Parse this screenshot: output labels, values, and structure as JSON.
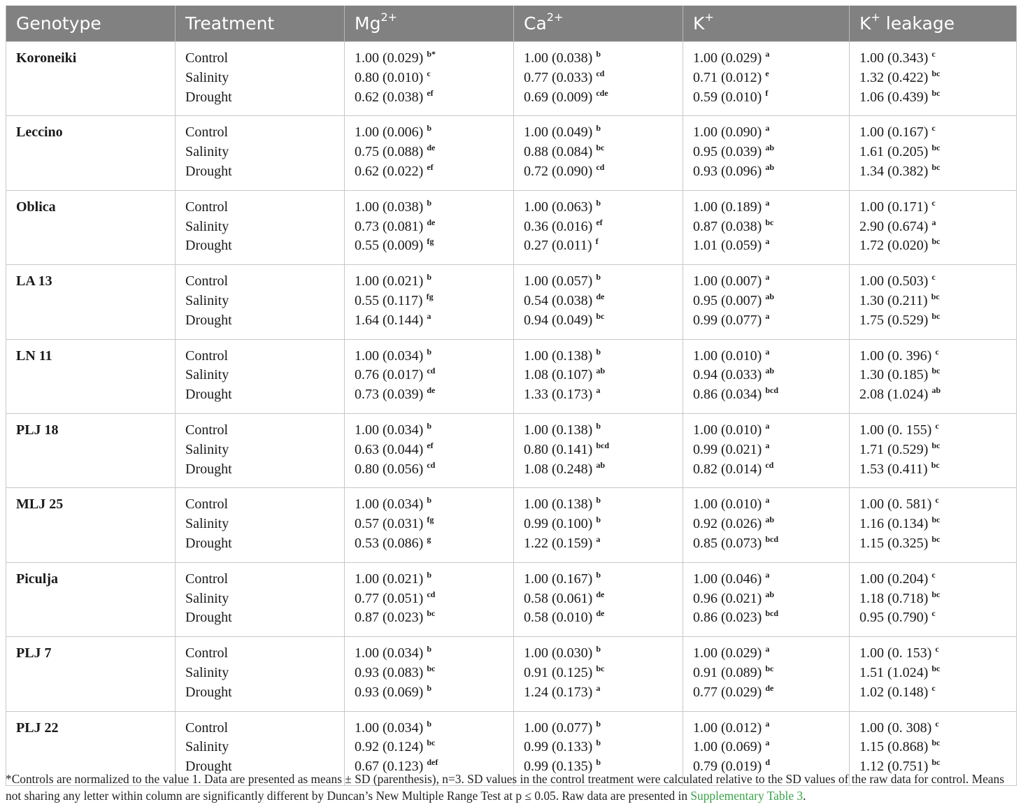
{
  "headers": {
    "genotype": "Genotype",
    "treatment": "Treatment",
    "mg": "Mg",
    "mg_sup": "2+",
    "ca": "Ca",
    "ca_sup": "2+",
    "k": "K",
    "k_sup": "+",
    "kl": "K",
    "kl_sup": "+",
    "kl_rest": " leakage"
  },
  "rows": [
    {
      "genotype": "Koroneiki",
      "treatments": [
        "Control",
        "Salinity",
        "Drought"
      ],
      "mg": [
        [
          "1.00 (0.029)",
          "b*"
        ],
        [
          "0.80 (0.010)",
          "c"
        ],
        [
          "0.62 (0.038)",
          "ef"
        ]
      ],
      "ca": [
        [
          "1.00 (0.038)",
          "b"
        ],
        [
          "0.77 (0.033)",
          "cd"
        ],
        [
          "0.69 (0.009)",
          "cde"
        ]
      ],
      "k": [
        [
          "1.00 (0.029)",
          "a"
        ],
        [
          "0.71 (0.012)",
          "e"
        ],
        [
          "0.59 (0.010)",
          "f"
        ]
      ],
      "kl": [
        [
          "1.00 (0.343)",
          "c"
        ],
        [
          "1.32 (0.422)",
          "bc"
        ],
        [
          "1.06 (0.439)",
          "bc"
        ]
      ]
    },
    {
      "genotype": "Leccino",
      "treatments": [
        "Control",
        "Salinity",
        "Drought"
      ],
      "mg": [
        [
          "1.00 (0.006)",
          "b"
        ],
        [
          "0.75 (0.088)",
          "de"
        ],
        [
          "0.62 (0.022)",
          "ef"
        ]
      ],
      "ca": [
        [
          "1.00 (0.049)",
          "b"
        ],
        [
          "0.88 (0.084)",
          "bc"
        ],
        [
          "0.72 (0.090)",
          "cd"
        ]
      ],
      "k": [
        [
          "1.00 (0.090)",
          "a"
        ],
        [
          "0.95 (0.039)",
          "ab"
        ],
        [
          "0.93 (0.096)",
          "ab"
        ]
      ],
      "kl": [
        [
          "1.00 (0.167)",
          "c"
        ],
        [
          "1.61 (0.205)",
          "bc"
        ],
        [
          "1.34 (0.382)",
          "bc"
        ]
      ]
    },
    {
      "genotype": "Oblica",
      "treatments": [
        "Control",
        "Salinity",
        "Drought"
      ],
      "mg": [
        [
          "1.00 (0.038)",
          "b"
        ],
        [
          "0.73 (0.081)",
          "de"
        ],
        [
          "0.55 (0.009)",
          "fg"
        ]
      ],
      "ca": [
        [
          "1.00 (0.063)",
          "b"
        ],
        [
          "0.36 (0.016)",
          "ef"
        ],
        [
          "0.27 (0.011)",
          "f"
        ]
      ],
      "k": [
        [
          "1.00 (0.189)",
          "a"
        ],
        [
          "0.87 (0.038)",
          "bc"
        ],
        [
          "1.01 (0.059)",
          "a"
        ]
      ],
      "kl": [
        [
          "1.00 (0.171)",
          "c"
        ],
        [
          "2.90 (0.674)",
          "a"
        ],
        [
          "1.72 (0.020)",
          "bc"
        ]
      ]
    },
    {
      "genotype": "LA 13",
      "treatments": [
        "Control",
        "Salinity",
        "Drought"
      ],
      "mg": [
        [
          "1.00 (0.021)",
          "b"
        ],
        [
          "0.55 (0.117)",
          "fg"
        ],
        [
          "1.64 (0.144)",
          "a"
        ]
      ],
      "ca": [
        [
          "1.00 (0.057)",
          "b"
        ],
        [
          "0.54 (0.038)",
          "de"
        ],
        [
          "0.94 (0.049)",
          "bc"
        ]
      ],
      "k": [
        [
          "1.00 (0.007)",
          "a"
        ],
        [
          "0.95 (0.007)",
          "ab"
        ],
        [
          "0.99 (0.077)",
          "a"
        ]
      ],
      "kl": [
        [
          "1.00 (0.503)",
          "c"
        ],
        [
          "1.30 (0.211)",
          "bc"
        ],
        [
          "1.75 (0.529)",
          "bc"
        ]
      ]
    },
    {
      "genotype": "LN 11",
      "treatments": [
        "Control",
        "Salinity",
        "Drought"
      ],
      "mg": [
        [
          "1.00 (0.034)",
          "b"
        ],
        [
          "0.76 (0.017)",
          "cd"
        ],
        [
          "0.73 (0.039)",
          "de"
        ]
      ],
      "ca": [
        [
          "1.00 (0.138)",
          "b"
        ],
        [
          "1.08 (0.107)",
          "ab"
        ],
        [
          "1.33 (0.173)",
          "a"
        ]
      ],
      "k": [
        [
          "1.00 (0.010)",
          "a"
        ],
        [
          "0.94 (0.033)",
          "ab"
        ],
        [
          "0.86 (0.034)",
          "bcd"
        ]
      ],
      "kl": [
        [
          "1.00 (0. 396)",
          "c"
        ],
        [
          "1.30 (0.185)",
          "bc"
        ],
        [
          "2.08 (1.024)",
          "ab"
        ]
      ]
    },
    {
      "genotype": "PLJ 18",
      "treatments": [
        "Control",
        "Salinity",
        "Drought"
      ],
      "mg": [
        [
          "1.00 (0.034)",
          "b"
        ],
        [
          "0.63 (0.044)",
          "ef"
        ],
        [
          "0.80 (0.056)",
          "cd"
        ]
      ],
      "ca": [
        [
          "1.00 (0.138)",
          "b"
        ],
        [
          "0.80 (0.141)",
          "bcd"
        ],
        [
          "1.08 (0.248)",
          "ab"
        ]
      ],
      "k": [
        [
          "1.00 (0.010)",
          "a"
        ],
        [
          "0.99 (0.021)",
          "a"
        ],
        [
          "0.82 (0.014)",
          "cd"
        ]
      ],
      "kl": [
        [
          "1.00 (0. 155)",
          "c"
        ],
        [
          "1.71 (0.529)",
          "bc"
        ],
        [
          "1.53 (0.411)",
          "bc"
        ]
      ]
    },
    {
      "genotype": "MLJ 25",
      "treatments": [
        "Control",
        "Salinity",
        "Drought"
      ],
      "mg": [
        [
          "1.00 (0.034)",
          "b"
        ],
        [
          "0.57 (0.031)",
          "fg"
        ],
        [
          "0.53 (0.086)",
          "g"
        ]
      ],
      "ca": [
        [
          "1.00 (0.138)",
          "b"
        ],
        [
          "0.99 (0.100)",
          "b"
        ],
        [
          "1.22 (0.159)",
          "a"
        ]
      ],
      "k": [
        [
          "1.00 (0.010)",
          "a"
        ],
        [
          "0.92 (0.026)",
          "ab"
        ],
        [
          "0.85 (0.073)",
          "bcd"
        ]
      ],
      "kl": [
        [
          "1.00 (0. 581)",
          "c"
        ],
        [
          "1.16 (0.134)",
          "bc"
        ],
        [
          "1.15 (0.325)",
          "bc"
        ]
      ]
    },
    {
      "genotype": "Piculja",
      "treatments": [
        "Control",
        "Salinity",
        "Drought"
      ],
      "mg": [
        [
          "1.00 (0.021)",
          "b"
        ],
        [
          "0.77 (0.051)",
          "cd"
        ],
        [
          "0.87 (0.023)",
          "bc"
        ]
      ],
      "ca": [
        [
          "1.00 (0.167)",
          "b"
        ],
        [
          "0.58 (0.061)",
          "de"
        ],
        [
          "0.58 (0.010)",
          "de"
        ]
      ],
      "k": [
        [
          "1.00 (0.046)",
          "a"
        ],
        [
          "0.96 (0.021)",
          "ab"
        ],
        [
          "0.86 (0.023)",
          "bcd"
        ]
      ],
      "kl": [
        [
          "1.00 (0.204)",
          "c"
        ],
        [
          "1.18 (0.718)",
          "bc"
        ],
        [
          "0.95 (0.790)",
          "c"
        ]
      ]
    },
    {
      "genotype": "PLJ 7",
      "treatments": [
        "Control",
        "Salinity",
        "Drought"
      ],
      "mg": [
        [
          "1.00 (0.034)",
          "b"
        ],
        [
          "0.93 (0.083)",
          "bc"
        ],
        [
          "0.93 (0.069)",
          "b"
        ]
      ],
      "ca": [
        [
          "1.00 (0.030)",
          "b"
        ],
        [
          "0.91 (0.125)",
          "bc"
        ],
        [
          "1.24 (0.173)",
          "a"
        ]
      ],
      "k": [
        [
          "1.00 (0.029)",
          "a"
        ],
        [
          "0.91 (0.089)",
          "bc"
        ],
        [
          "0.77 (0.029)",
          "de"
        ]
      ],
      "kl": [
        [
          "1.00 (0. 153)",
          "c"
        ],
        [
          "1.51 (1.024)",
          "bc"
        ],
        [
          "1.02 (0.148)",
          "c"
        ]
      ]
    },
    {
      "genotype": "PLJ 22",
      "treatments": [
        "Control",
        "Salinity",
        "Drought"
      ],
      "mg": [
        [
          "1.00 (0.034)",
          "b"
        ],
        [
          "0.92 (0.124)",
          "bc"
        ],
        [
          "0.67 (0.123)",
          "def"
        ]
      ],
      "ca": [
        [
          "1.00 (0.077)",
          "b"
        ],
        [
          "0.99 (0.133)",
          "b"
        ],
        [
          "0.99 (0.135)",
          "b"
        ]
      ],
      "k": [
        [
          "1.00 (0.012)",
          "a"
        ],
        [
          "1.00 (0.069)",
          "a"
        ],
        [
          "0.79 (0.019)",
          "d"
        ]
      ],
      "kl": [
        [
          "1.00 (0. 308)",
          "c"
        ],
        [
          "1.15 (0.868)",
          "bc"
        ],
        [
          "1.12 (0.751)",
          "bc"
        ]
      ]
    }
  ],
  "footnote": {
    "text": "*Controls are normalized to the value 1. Data are presented as means ± SD (parenthesis), n=3. SD values in the control treatment were calculated relative to the SD values of the raw data for control. Means not sharing any letter within column are significantly different by Duncan’s New Multiple Range Test at p ≤ 0.05. Raw data are presented in ",
    "link": "Supplementary Table 3",
    "end": "."
  }
}
